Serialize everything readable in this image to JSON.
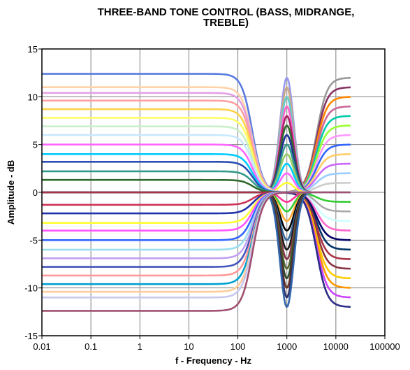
{
  "chart_data": {
    "type": "line",
    "title_lines": [
      "THREE-BAND TONE CONTROL (BASS, MIDRANGE,",
      "TREBLE)"
    ],
    "xlabel": "f - Frequency - Hz",
    "ylabel": "Amplitude - dB",
    "x_scale": "log",
    "xlim": [
      0.01,
      100000
    ],
    "ylim": [
      -15,
      15
    ],
    "x_ticks": [
      0.01,
      0.1,
      1,
      10,
      100,
      1000,
      10000,
      100000
    ],
    "x_tick_labels": [
      "0.01",
      "0.1",
      "1",
      "10",
      "100",
      "1000",
      "10000",
      "100000"
    ],
    "y_ticks": [
      -15,
      -10,
      -5,
      0,
      5,
      10,
      15
    ],
    "y_tick_labels": [
      "-15",
      "-10",
      "-5",
      "0",
      "5",
      "10",
      "15"
    ],
    "grid": true,
    "legend": "none",
    "x_range": [
      0.01,
      20000
    ],
    "bands": {
      "bass": {
        "shape": "low-shelf",
        "corner_hz": 200,
        "gains_db": [
          12.4,
          11.0,
          10.4,
          9.6,
          8.7,
          7.8,
          6.9,
          6.0,
          5.0,
          4.0,
          3.2,
          2.2,
          1.3,
          0,
          -1.3,
          -2.2,
          -3.2,
          -4.0,
          -5.0,
          -6.0,
          -6.9,
          -7.8,
          -8.7,
          -9.6,
          -10.4,
          -11.0,
          -12.4
        ],
        "colors": [
          "#5b7be0",
          "#ffd2a8",
          "#e49fe4",
          "#ff9f9f",
          "#ffd24d",
          "#ffff66",
          "#c9f0c9",
          "#c8e8ff",
          "#ff66ff",
          "#00ccff",
          "#2b4db3",
          "#339988",
          "#2d6b2d",
          "#aa3344",
          "#cc3355",
          "#2233aa",
          "#ffff33",
          "#ff55ff",
          "#3366ff",
          "#99ddee",
          "#c0a0f0",
          "#4455bb",
          "#ff9999",
          "#00a0d0",
          "#ffcc99",
          "#c8c8f0",
          "#a05070"
        ]
      },
      "midrange": {
        "shape": "peaking",
        "center_hz": 1000,
        "gains_db": [
          12.0,
          11.0,
          10.0,
          9.0,
          8.0,
          7.0,
          6.0,
          5.0,
          4.0,
          3.0,
          2.0,
          1.0,
          0,
          -1.0,
          -2.0,
          -3.0,
          -4.0,
          -5.0,
          -6.0,
          -7.0,
          -8.0,
          -9.0,
          -10.0,
          -11.0,
          -12.0
        ],
        "colors": [
          "#9999ee",
          "#ccaa88",
          "#66cccc",
          "#ff66cc",
          "#aa2266",
          "#2d6b2d",
          "#223399",
          "#339988",
          "#99cc66",
          "#00ccff",
          "#ff66ff",
          "#ffff33",
          "#ff66aa",
          "#ff3399",
          "#33cc33",
          "#ffaa33",
          "#000000",
          "#336699",
          "#1a1a1a",
          "#883344",
          "#556633",
          "#2a4a2a",
          "#663322",
          "#2d2d66",
          "#3366aa"
        ]
      },
      "treble": {
        "shape": "high-shelf",
        "corner_hz": 4000,
        "gains_db": [
          12.0,
          11.0,
          10.0,
          9.0,
          8.0,
          7.0,
          6.0,
          5.0,
          4.0,
          3.0,
          2.0,
          1.0,
          -1.0,
          -2.0,
          -3.0,
          -4.0,
          -5.0,
          -6.0,
          -7.0,
          -8.0,
          -9.0,
          -10.0,
          -11.0,
          -12.0
        ],
        "colors": [
          "#999999",
          "#883366",
          "#ff8800",
          "#cc6699",
          "#00ccaa",
          "#99ff33",
          "#ff99ff",
          "#3366ff",
          "#ffcc66",
          "#cc66ff",
          "#99ccff",
          "#cccccc",
          "#33cc33",
          "#aaaaaa",
          "#ccffff",
          "#ff66cc",
          "#000066",
          "#003366",
          "#aa3344",
          "#883344",
          "#ffcc00",
          "#ff9900",
          "#cc44ff",
          "#2d2d88"
        ]
      }
    }
  }
}
